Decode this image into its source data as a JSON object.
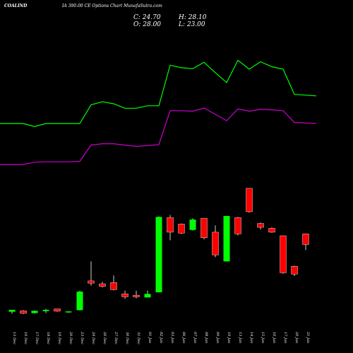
{
  "header": {
    "symbol": "COALIND",
    "subtitle": "IA 390.00 CE Options  Chart MunafaSutra.com",
    "close_label": "C: 24.70",
    "open_label": "O: 28.00",
    "high_label": "H: 28.10",
    "low_label": "L: 23.00"
  },
  "chart_data": {
    "type": "candlestick",
    "title": "COALIND",
    "x_labels": [
      "13 Dec",
      "16 Dec",
      "17 Dec",
      "18 Dec",
      "19 Dec",
      "20 Dec",
      "23 Dec",
      "24 Dec",
      "26 Dec",
      "27 Dec",
      "30 Dec",
      "31 Dec",
      "01 Jan",
      "02 Jan",
      "03 Jan",
      "06 Jan",
      "07 Jan",
      "08 Jan",
      "09 Jan",
      "10 Jan",
      "13 Jan",
      "14 Jan",
      "15 Jan",
      "16 Jan",
      "17 Jan",
      "20 Jan",
      "21 Jan"
    ],
    "price_range": [
      0,
      65
    ],
    "candles": [
      {
        "date": "13 Dec",
        "open": 4.0,
        "high": 4.6,
        "low": 3.4,
        "close": 4.6
      },
      {
        "date": "16 Dec",
        "open": 4.3,
        "high": 4.5,
        "low": 3.3,
        "close": 3.5
      },
      {
        "date": "17 Dec",
        "open": 3.6,
        "high": 4.4,
        "low": 3.5,
        "close": 4.3
      },
      {
        "date": "18 Dec",
        "open": 4.2,
        "high": 4.9,
        "low": 3.6,
        "close": 4.6
      },
      {
        "date": "19 Dec",
        "open": 4.9,
        "high": 4.9,
        "low": 4.0,
        "close": 4.2
      },
      {
        "date": "20 Dec",
        "open": 3.8,
        "high": 4.2,
        "low": 3.7,
        "close": 4.1
      },
      {
        "date": "23 Dec",
        "open": 4.5,
        "high": 10.5,
        "low": 4.4,
        "close": 10.2
      },
      {
        "date": "24 Dec",
        "open": 13.5,
        "high": 19.5,
        "low": 12.0,
        "close": 12.8
      },
      {
        "date": "26 Dec",
        "open": 12.6,
        "high": 13.2,
        "low": 11.5,
        "close": 11.8
      },
      {
        "date": "27 Dec",
        "open": 13.0,
        "high": 15.2,
        "low": 10.6,
        "close": 10.8
      },
      {
        "date": "30 Dec",
        "open": 9.5,
        "high": 10.5,
        "low": 8.0,
        "close": 8.6
      },
      {
        "date": "31 Dec",
        "open": 9.1,
        "high": 10.5,
        "low": 8.1,
        "close": 8.6
      },
      {
        "date": "01 Jan",
        "open": 8.4,
        "high": 10.5,
        "low": 8.4,
        "close": 9.5
      },
      {
        "date": "02 Jan",
        "open": 10.0,
        "high": 33.4,
        "low": 10.0,
        "close": 33.2
      },
      {
        "date": "03 Jan",
        "open": 33.0,
        "high": 33.8,
        "low": 26.0,
        "close": 28.5
      },
      {
        "date": "06 Jan",
        "open": 31.0,
        "high": 31.2,
        "low": 28.0,
        "close": 28.2
      },
      {
        "date": "07 Jan",
        "open": 29.2,
        "high": 32.8,
        "low": 29.0,
        "close": 32.4
      },
      {
        "date": "08 Jan",
        "open": 32.8,
        "high": 32.8,
        "low": 26.3,
        "close": 26.8
      },
      {
        "date": "09 Jan",
        "open": 28.5,
        "high": 30.6,
        "low": 20.8,
        "close": 21.5
      },
      {
        "date": "10 Jan",
        "open": 19.5,
        "high": 33.5,
        "low": 19.5,
        "close": 33.5
      },
      {
        "date": "13 Jan",
        "open": 33.0,
        "high": 33.2,
        "low": 27.5,
        "close": 28.0
      },
      {
        "date": "14 Jan",
        "open": 42.0,
        "high": 42.0,
        "low": 34.5,
        "close": 34.8
      },
      {
        "date": "15 Jan",
        "open": 31.2,
        "high": 31.5,
        "low": 29.3,
        "close": 30.0
      },
      {
        "date": "16 Jan",
        "open": 29.7,
        "high": 30.0,
        "low": 28.3,
        "close": 28.5
      },
      {
        "date": "17 Jan",
        "open": 27.4,
        "high": 27.5,
        "low": 15.7,
        "close": 16.0
      },
      {
        "date": "20 Jan",
        "open": 18.0,
        "high": 18.2,
        "low": 15.0,
        "close": 15.6
      },
      {
        "date": "21 Jan",
        "open": 28.0,
        "high": 28.1,
        "low": 23.0,
        "close": 24.7
      }
    ],
    "overlay_lines": [
      {
        "color": "#00ff00",
        "values": [
          0.0,
          0.0,
          -0.6,
          0.0,
          0.0,
          0.0,
          0.0,
          3.8,
          4.4,
          4.0,
          3.1,
          3.1,
          3.6,
          3.6,
          11.8,
          11.3,
          11.1,
          12.4,
          10.3,
          8.3,
          12.8,
          11.0,
          12.5,
          11.5,
          11.0,
          5.9,
          5.6
        ]
      },
      {
        "color": "#cc00cc",
        "values": [
          0.0,
          0.0,
          0.5,
          0.6,
          0.6,
          0.6,
          0.7,
          4.3,
          4.6,
          4.6,
          4.3,
          4.0,
          4.2,
          4.4,
          11.9,
          11.9,
          11.8,
          12.5,
          11.1,
          9.7,
          12.3,
          11.8,
          12.2,
          12.1,
          11.9,
          9.3,
          9.1
        ]
      }
    ],
    "colors": {
      "up": "#00ff00",
      "down": "#ff0000",
      "background": "#000000"
    }
  }
}
